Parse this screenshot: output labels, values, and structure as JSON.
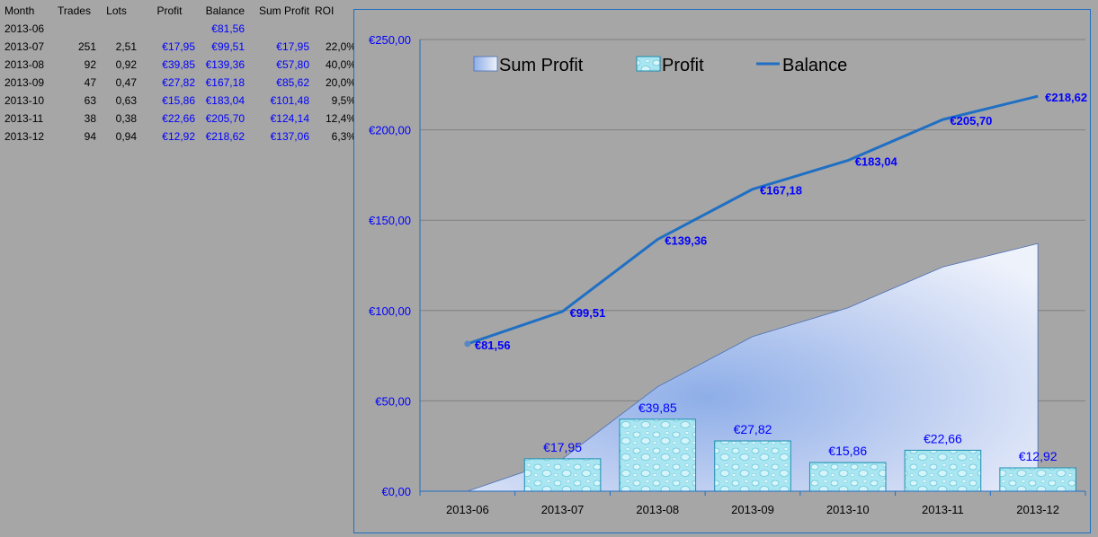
{
  "table": {
    "headers": [
      "Month",
      "Trades",
      "Lots",
      "Profit",
      "Balance",
      "Sum Profit",
      "ROI"
    ],
    "rows": [
      {
        "month": "2013-06",
        "trades": "",
        "lots": "",
        "profit": "",
        "balance": "€81,56",
        "sum_profit": "",
        "roi": ""
      },
      {
        "month": "2013-07",
        "trades": "251",
        "lots": "2,51",
        "profit": "€17,95",
        "balance": "€99,51",
        "sum_profit": "€17,95",
        "roi": "22,0%"
      },
      {
        "month": "2013-08",
        "trades": "92",
        "lots": "0,92",
        "profit": "€39,85",
        "balance": "€139,36",
        "sum_profit": "€57,80",
        "roi": "40,0%"
      },
      {
        "month": "2013-09",
        "trades": "47",
        "lots": "0,47",
        "profit": "€27,82",
        "balance": "€167,18",
        "sum_profit": "€85,62",
        "roi": "20,0%"
      },
      {
        "month": "2013-10",
        "trades": "63",
        "lots": "0,63",
        "profit": "€15,86",
        "balance": "€183,04",
        "sum_profit": "€101,48",
        "roi": "9,5%"
      },
      {
        "month": "2013-11",
        "trades": "38",
        "lots": "0,38",
        "profit": "€22,66",
        "balance": "€205,70",
        "sum_profit": "€124,14",
        "roi": "12,4%"
      },
      {
        "month": "2013-12",
        "trades": "94",
        "lots": "0,94",
        "profit": "€12,92",
        "balance": "€218,62",
        "sum_profit": "€137,06",
        "roi": "6,3%"
      }
    ]
  },
  "chart_data": {
    "type": "bar",
    "categories": [
      "2013-06",
      "2013-07",
      "2013-08",
      "2013-09",
      "2013-10",
      "2013-11",
      "2013-12"
    ],
    "ylim": [
      0,
      250
    ],
    "yticks": [
      0,
      50,
      100,
      150,
      200,
      250
    ],
    "ytick_labels": [
      "€0,00",
      "€50,00",
      "€100,00",
      "€150,00",
      "€200,00",
      "€250,00"
    ],
    "grid": true,
    "legend_position": "top-left",
    "series": [
      {
        "name": "Sum Profit",
        "kind": "area",
        "values": [
          0,
          17.95,
          57.8,
          85.62,
          101.48,
          124.14,
          137.06
        ]
      },
      {
        "name": "Profit",
        "kind": "bar",
        "values": [
          null,
          17.95,
          39.85,
          27.82,
          15.86,
          22.66,
          12.92
        ],
        "labels": [
          "",
          "€17,95",
          "€39,85",
          "€27,82",
          "€15,86",
          "€22,66",
          "€12,92"
        ]
      },
      {
        "name": "Balance",
        "kind": "line",
        "values": [
          81.56,
          99.51,
          139.36,
          167.18,
          183.04,
          205.7,
          218.62
        ],
        "labels": [
          "€81,56",
          "€99,51",
          "€139,36",
          "€167,18",
          "€183,04",
          "€205,70",
          "€218,62"
        ]
      }
    ],
    "colors": {
      "balance": "#1f6fc4",
      "bar_fill": "#9fe3ef",
      "bar_stroke": "#1c8fb0",
      "area_light": "#eef2fb",
      "area_mid": "#8eaee8",
      "label": "#0000ff"
    }
  }
}
